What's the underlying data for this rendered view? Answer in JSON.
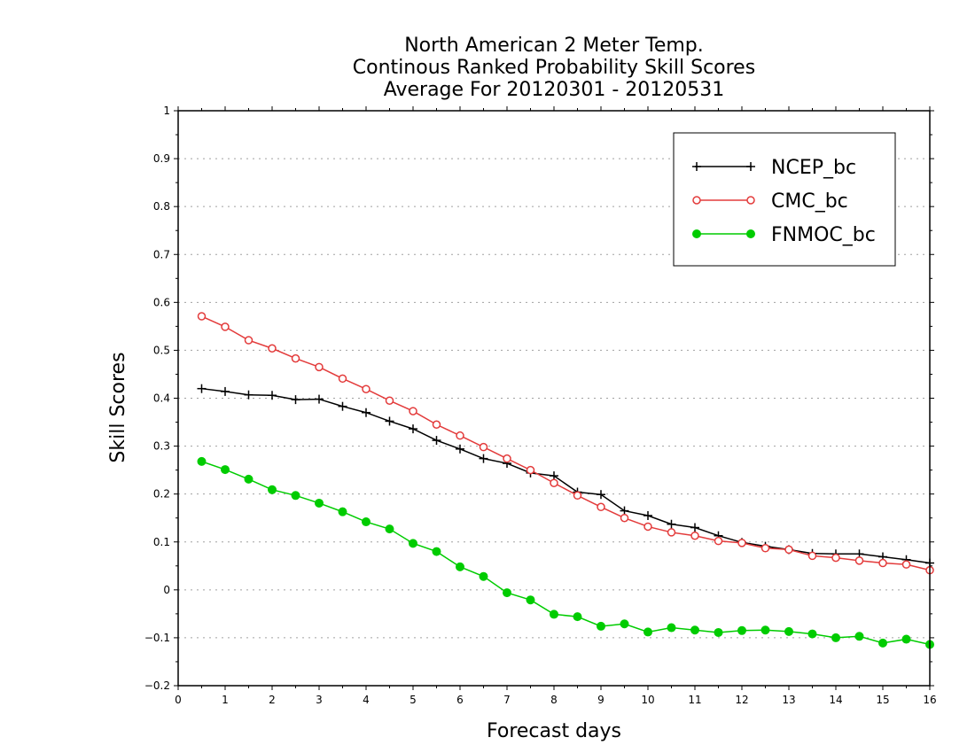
{
  "chart_data": {
    "type": "line",
    "title": [
      "North American 2 Meter Temp.",
      "Continous Ranked Probability Skill Scores",
      "Average For 20120301 - 20120531"
    ],
    "xlabel": "Forecast days",
    "ylabel": "Skill Scores",
    "xlim": [
      0,
      16
    ],
    "ylim": [
      -0.2,
      1
    ],
    "xticks": [
      "0",
      "1",
      "2",
      "3",
      "4",
      "5",
      "6",
      "7",
      "8",
      "9",
      "10",
      "11",
      "12",
      "13",
      "14",
      "15",
      "16"
    ],
    "yticks": [
      "−0.2",
      "−0.1",
      "0",
      "0.1",
      "0.2",
      "0.3",
      "0.4",
      "0.5",
      "0.6",
      "0.7",
      "0.8",
      "0.9",
      "1"
    ],
    "grid": true,
    "legend_position": "top-right",
    "x": [
      0.5,
      1,
      1.5,
      2,
      2.5,
      3,
      3.5,
      4,
      4.5,
      5,
      5.5,
      6,
      6.5,
      7,
      7.5,
      8,
      8.5,
      9,
      9.5,
      10,
      10.5,
      11,
      11.5,
      12,
      12.5,
      13,
      13.5,
      14,
      14.5,
      15,
      15.5,
      16
    ],
    "series": [
      {
        "name": "NCEP_bc",
        "color": "#000000",
        "marker": "plus",
        "values": [
          0.42,
          0.414,
          0.407,
          0.406,
          0.397,
          0.398,
          0.383,
          0.37,
          0.352,
          0.336,
          0.312,
          0.294,
          0.274,
          0.264,
          0.244,
          0.238,
          0.204,
          0.199,
          0.165,
          0.155,
          0.137,
          0.13,
          0.113,
          0.099,
          0.091,
          0.084,
          0.076,
          0.075,
          0.075,
          0.069,
          0.063,
          0.056
        ]
      },
      {
        "name": "CMC_bc",
        "color": "#e33b3b",
        "marker": "open-circle",
        "values": [
          0.571,
          0.549,
          0.521,
          0.504,
          0.483,
          0.465,
          0.441,
          0.419,
          0.395,
          0.373,
          0.345,
          0.322,
          0.298,
          0.274,
          0.25,
          0.223,
          0.197,
          0.173,
          0.15,
          0.132,
          0.12,
          0.113,
          0.102,
          0.098,
          0.087,
          0.084,
          0.071,
          0.067,
          0.061,
          0.056,
          0.053,
          0.041
        ]
      },
      {
        "name": "FNMOC_bc",
        "color": "#00cc00",
        "marker": "filled-circle",
        "values": [
          0.268,
          0.251,
          0.231,
          0.209,
          0.197,
          0.181,
          0.163,
          0.142,
          0.127,
          0.097,
          0.08,
          0.048,
          0.028,
          -0.006,
          -0.021,
          -0.051,
          -0.056,
          -0.076,
          -0.071,
          -0.088,
          -0.079,
          -0.084,
          -0.089,
          -0.085,
          -0.084,
          -0.087,
          -0.092,
          -0.1,
          -0.097,
          -0.111,
          -0.103,
          -0.114
        ]
      }
    ]
  }
}
